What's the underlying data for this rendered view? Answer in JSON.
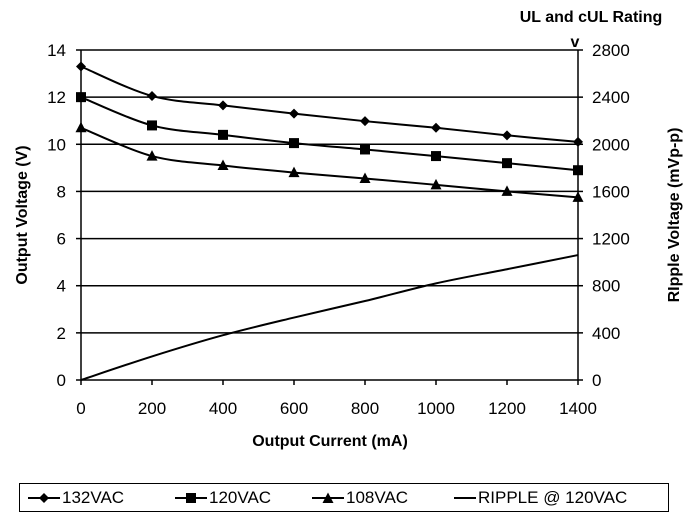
{
  "chart_data": {
    "type": "line",
    "top_note": "UL and cUL Rating",
    "top_note_marker": "v",
    "xlabel": "Output Current (mA)",
    "ylabel": "Output Voltage (V)",
    "y2label": "RIpple Voltage (mVp-p)",
    "xlim": [
      0,
      1400
    ],
    "ylim": [
      0,
      14
    ],
    "y2lim": [
      0,
      2800
    ],
    "xticks": [
      "0",
      "200",
      "400",
      "600",
      "800",
      "1000",
      "1200",
      "1400"
    ],
    "yticks": [
      "0",
      "2",
      "4",
      "6",
      "8",
      "10",
      "12",
      "14"
    ],
    "y2ticks": [
      "0",
      "400",
      "800",
      "1200",
      "1600",
      "2000",
      "2400",
      "2800"
    ],
    "grid": "horizontal",
    "legend_position": "bottom",
    "series": [
      {
        "name": "132VAC",
        "axis": "left",
        "marker": "diamond",
        "x": [
          0,
          200,
          400,
          600,
          800,
          1000,
          1200,
          1400
        ],
        "y": [
          13.3,
          12.05,
          11.65,
          11.3,
          10.98,
          10.7,
          10.38,
          10.1
        ]
      },
      {
        "name": "120VAC",
        "axis": "left",
        "marker": "square",
        "x": [
          0,
          200,
          400,
          600,
          800,
          1000,
          1200,
          1400
        ],
        "y": [
          12.0,
          10.8,
          10.4,
          10.05,
          9.78,
          9.5,
          9.2,
          8.9
        ]
      },
      {
        "name": "108VAC",
        "axis": "left",
        "marker": "triangle",
        "x": [
          0,
          200,
          400,
          600,
          800,
          1000,
          1200,
          1400
        ],
        "y": [
          10.7,
          9.5,
          9.1,
          8.8,
          8.55,
          8.28,
          8.0,
          7.75
        ]
      },
      {
        "name": "RIPPLE @ 120VAC",
        "axis": "right",
        "marker": "none",
        "x": [
          0,
          200,
          400,
          600,
          800,
          1000,
          1200,
          1400
        ],
        "y": [
          0,
          200,
          380,
          530,
          670,
          820,
          940,
          1060
        ]
      }
    ]
  }
}
